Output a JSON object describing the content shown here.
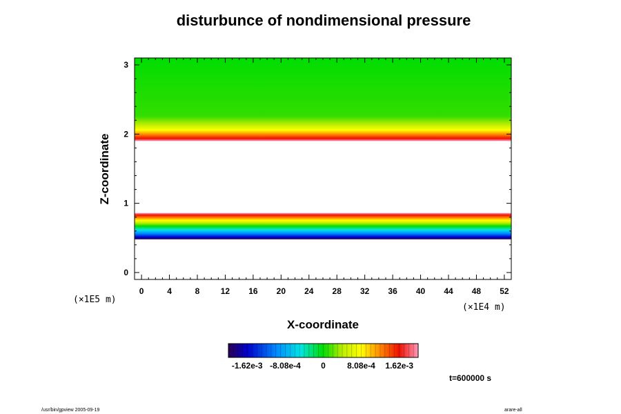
{
  "chart_data": {
    "type": "heatmap",
    "title": "disturbunce of nondimensional pressure",
    "xlabel": "X-coordinate",
    "ylabel": "Z-coordinate",
    "x_scale_label": "(×1E4 m)",
    "y_scale_label": "(×1E5 m)",
    "x_ticks": [
      0,
      4,
      8,
      12,
      16,
      20,
      24,
      28,
      32,
      36,
      40,
      44,
      48,
      52
    ],
    "y_ticks": [
      0,
      1,
      2,
      3
    ],
    "xlim": [
      -1,
      53
    ],
    "ylim": [
      -0.1,
      3.1
    ],
    "colorbar": {
      "ticks": [
        "-1.62e-3",
        "-8.08e-4",
        "0",
        "8.08e-4",
        "1.62e-3"
      ],
      "range": [
        -0.00202,
        0.00202
      ],
      "colors": [
        "#2a0055",
        "#0000cc",
        "#0088ff",
        "#00e5e5",
        "#00dd00",
        "#bbee00",
        "#ffff00",
        "#ff8800",
        "#ee1100",
        "#ff99bb"
      ]
    },
    "bands": [
      {
        "z_low": 0.48,
        "z_high": 0.86,
        "value_at_low": -0.0017,
        "value_at_high": 0.0019
      },
      {
        "z_low": 1.9,
        "z_high": 3.1,
        "value_at_low": 0.0018,
        "value_at_high": 0.0
      }
    ],
    "time_label": "t=600000 s"
  },
  "footer": {
    "left": "/usr/bin/gpview 2005-09-19",
    "right": "arare-all"
  }
}
